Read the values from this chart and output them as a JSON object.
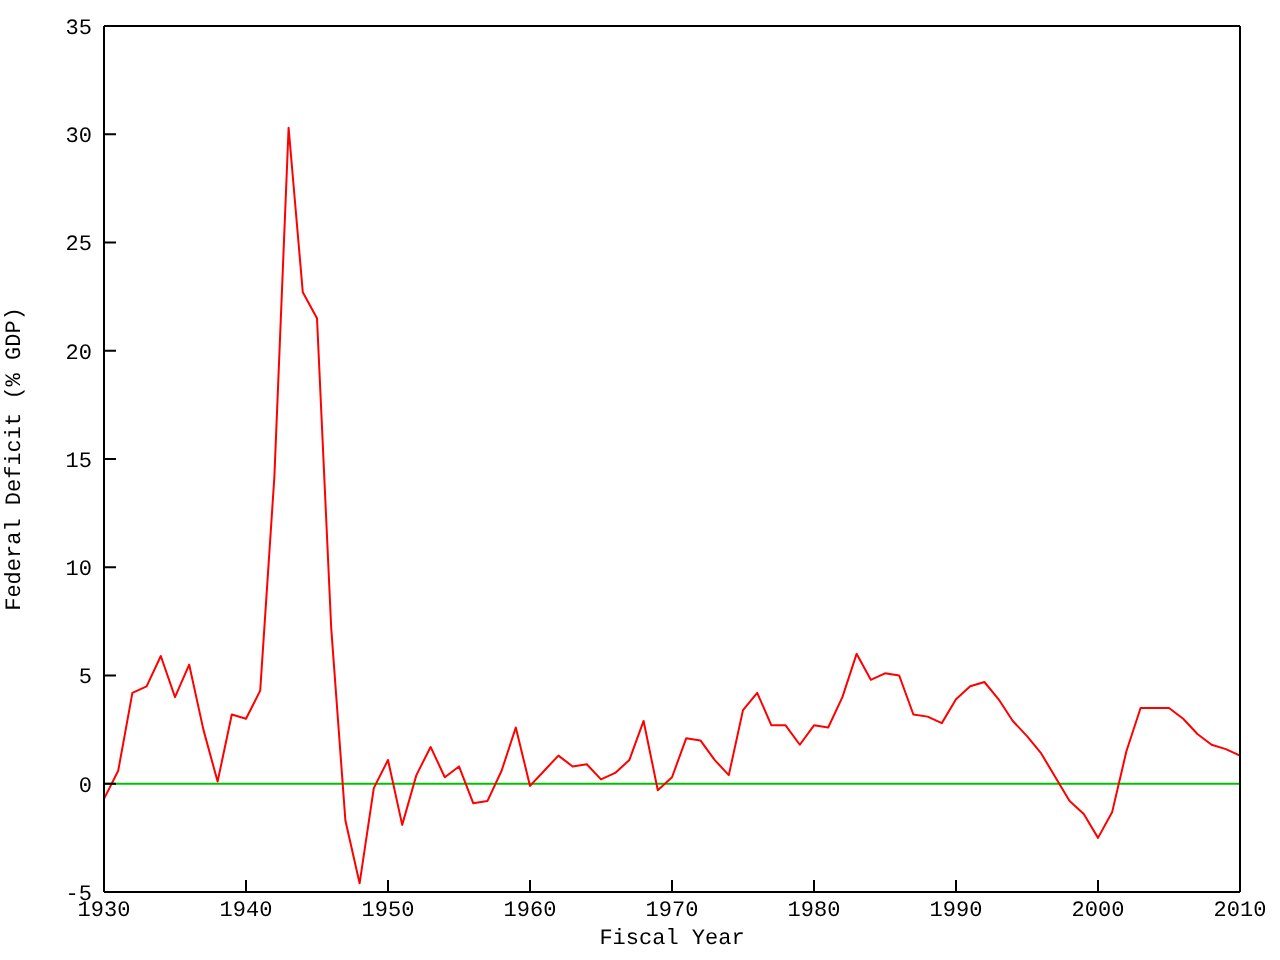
{
  "chart_data": {
    "type": "line",
    "xlabel": "Fiscal Year",
    "ylabel": "Federal Deficit (% GDP)",
    "x": [
      1930,
      1931,
      1932,
      1933,
      1934,
      1935,
      1936,
      1937,
      1938,
      1939,
      1940,
      1941,
      1942,
      1943,
      1944,
      1945,
      1946,
      1947,
      1948,
      1949,
      1950,
      1951,
      1952,
      1953,
      1954,
      1955,
      1956,
      1957,
      1958,
      1959,
      1960,
      1961,
      1962,
      1963,
      1964,
      1965,
      1966,
      1967,
      1968,
      1969,
      1970,
      1971,
      1972,
      1973,
      1974,
      1975,
      1976,
      1977,
      1978,
      1979,
      1980,
      1981,
      1982,
      1983,
      1984,
      1985,
      1986,
      1987,
      1988,
      1989,
      1990,
      1991,
      1992,
      1993,
      1994,
      1995,
      1996,
      1997,
      1998,
      1999,
      2000,
      2001,
      2002,
      2003,
      2004,
      2005,
      2006,
      2007,
      2008,
      2009,
      2010
    ],
    "series": [
      {
        "color": "#ff0000",
        "values": [
          -0.7,
          0.6,
          4.2,
          4.5,
          5.9,
          4.0,
          5.5,
          2.5,
          0.1,
          3.2,
          3.0,
          4.3,
          14.2,
          30.3,
          22.7,
          21.5,
          7.2,
          -1.7,
          -4.6,
          -0.2,
          1.1,
          -1.9,
          0.4,
          1.7,
          0.3,
          0.8,
          -0.9,
          -0.8,
          0.6,
          2.6,
          -0.1,
          0.6,
          1.3,
          0.8,
          0.9,
          0.2,
          0.5,
          1.1,
          2.9,
          -0.3,
          0.3,
          2.1,
          2.0,
          1.1,
          0.4,
          3.4,
          4.2,
          2.7,
          2.7,
          1.8,
          2.7,
          2.6,
          4.0,
          6.0,
          4.8,
          5.1,
          5.0,
          3.2,
          3.1,
          2.8,
          3.9,
          4.5,
          4.7,
          3.9,
          2.9,
          2.2,
          1.4,
          0.3,
          -0.8,
          -1.4,
          -2.5,
          -1.3,
          1.5,
          3.5,
          3.5,
          3.5,
          3.0,
          2.3,
          1.8,
          1.6,
          1.3
        ]
      }
    ],
    "xlim": [
      1930,
      2010
    ],
    "xticks": [
      1930,
      1940,
      1950,
      1960,
      1970,
      1980,
      1990,
      2000,
      2010
    ],
    "ylim": [
      -5,
      35
    ],
    "yticks": [
      -5,
      0,
      5,
      10,
      15,
      20,
      25,
      30,
      35
    ],
    "ref_lines": [
      {
        "axis": "y",
        "value": 0,
        "color": "#00c000"
      }
    ],
    "grid": false,
    "marker": "none",
    "line_style": "solid"
  }
}
